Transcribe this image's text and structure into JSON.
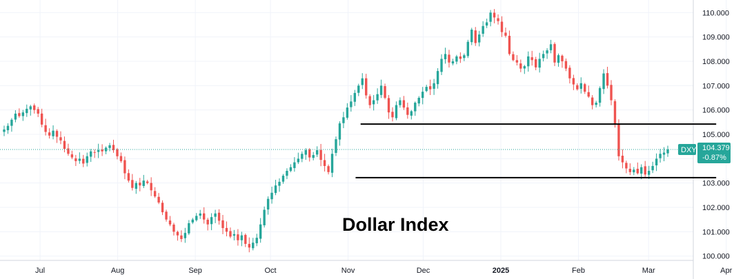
{
  "chart_data": {
    "type": "candlestick",
    "overlay_text": "Dollar Index",
    "symbol": "DXY",
    "last_price": "104.379",
    "change_pct": "-0.87%",
    "y_ticks": [
      "100.000",
      "101.000",
      "102.000",
      "103.000",
      "104.000",
      "105.000",
      "106.000",
      "107.000",
      "108.000",
      "109.000",
      "110.000"
    ],
    "x_ticks": [
      "Jul",
      "Aug",
      "Sep",
      "Oct",
      "Nov",
      "Dec",
      "2025",
      "Feb",
      "Mar",
      "Apr"
    ],
    "ylim": [
      99.85,
      110.15
    ],
    "horizontal_levels": [
      {
        "value": 105.42,
        "from": "2024-11-06",
        "to": "2025-03-28"
      },
      {
        "value": 103.22,
        "from": "2024-11-04",
        "to": "2025-03-28"
      }
    ],
    "closes": [
      105.2,
      105.35,
      105.6,
      105.85,
      105.75,
      105.9,
      106.05,
      106.15,
      106.0,
      105.85,
      105.4,
      105.1,
      104.95,
      105.15,
      104.9,
      104.75,
      104.4,
      104.2,
      104.05,
      103.9,
      104.0,
      103.8,
      104.1,
      104.3,
      104.25,
      104.35,
      104.3,
      104.45,
      104.55,
      104.35,
      104.1,
      103.9,
      103.4,
      103.1,
      102.8,
      103.0,
      102.9,
      103.1,
      103.0,
      102.7,
      102.45,
      102.2,
      101.8,
      101.5,
      101.3,
      101.0,
      100.85,
      100.7,
      100.95,
      101.35,
      101.5,
      101.65,
      101.75,
      101.5,
      101.3,
      101.6,
      101.75,
      101.45,
      101.15,
      101.0,
      100.8,
      100.9,
      100.65,
      100.85,
      100.5,
      100.35,
      100.55,
      100.75,
      101.3,
      101.9,
      102.35,
      102.6,
      102.9,
      103.05,
      103.3,
      103.5,
      103.65,
      103.85,
      104.0,
      104.2,
      104.35,
      104.05,
      104.15,
      104.35,
      103.95,
      103.7,
      103.45,
      104.2,
      104.8,
      105.45,
      105.7,
      106.1,
      106.35,
      106.7,
      107.0,
      107.3,
      106.6,
      106.2,
      106.4,
      106.65,
      107.0,
      106.5,
      105.9,
      105.7,
      106.2,
      106.4,
      106.1,
      105.8,
      105.95,
      106.3,
      106.5,
      106.75,
      106.95,
      106.85,
      107.1,
      107.6,
      108.1,
      108.3,
      107.95,
      108.0,
      108.2,
      108.1,
      108.25,
      108.8,
      109.3,
      108.75,
      109.1,
      109.45,
      109.6,
      110.0,
      109.8,
      109.65,
      109.2,
      109.05,
      108.3,
      108.05,
      107.95,
      107.7,
      107.8,
      108.2,
      108.05,
      107.75,
      108.1,
      108.3,
      108.45,
      108.7,
      107.95,
      108.25,
      108.0,
      107.7,
      107.3,
      107.05,
      106.85,
      107.1,
      106.75,
      106.55,
      106.2,
      106.3,
      106.9,
      107.5,
      107.0,
      106.4,
      105.4,
      104.1,
      103.85,
      103.6,
      103.45,
      103.55,
      103.4,
      103.65,
      103.35,
      103.5,
      103.7,
      104.0,
      104.2,
      104.25,
      104.38
    ]
  }
}
